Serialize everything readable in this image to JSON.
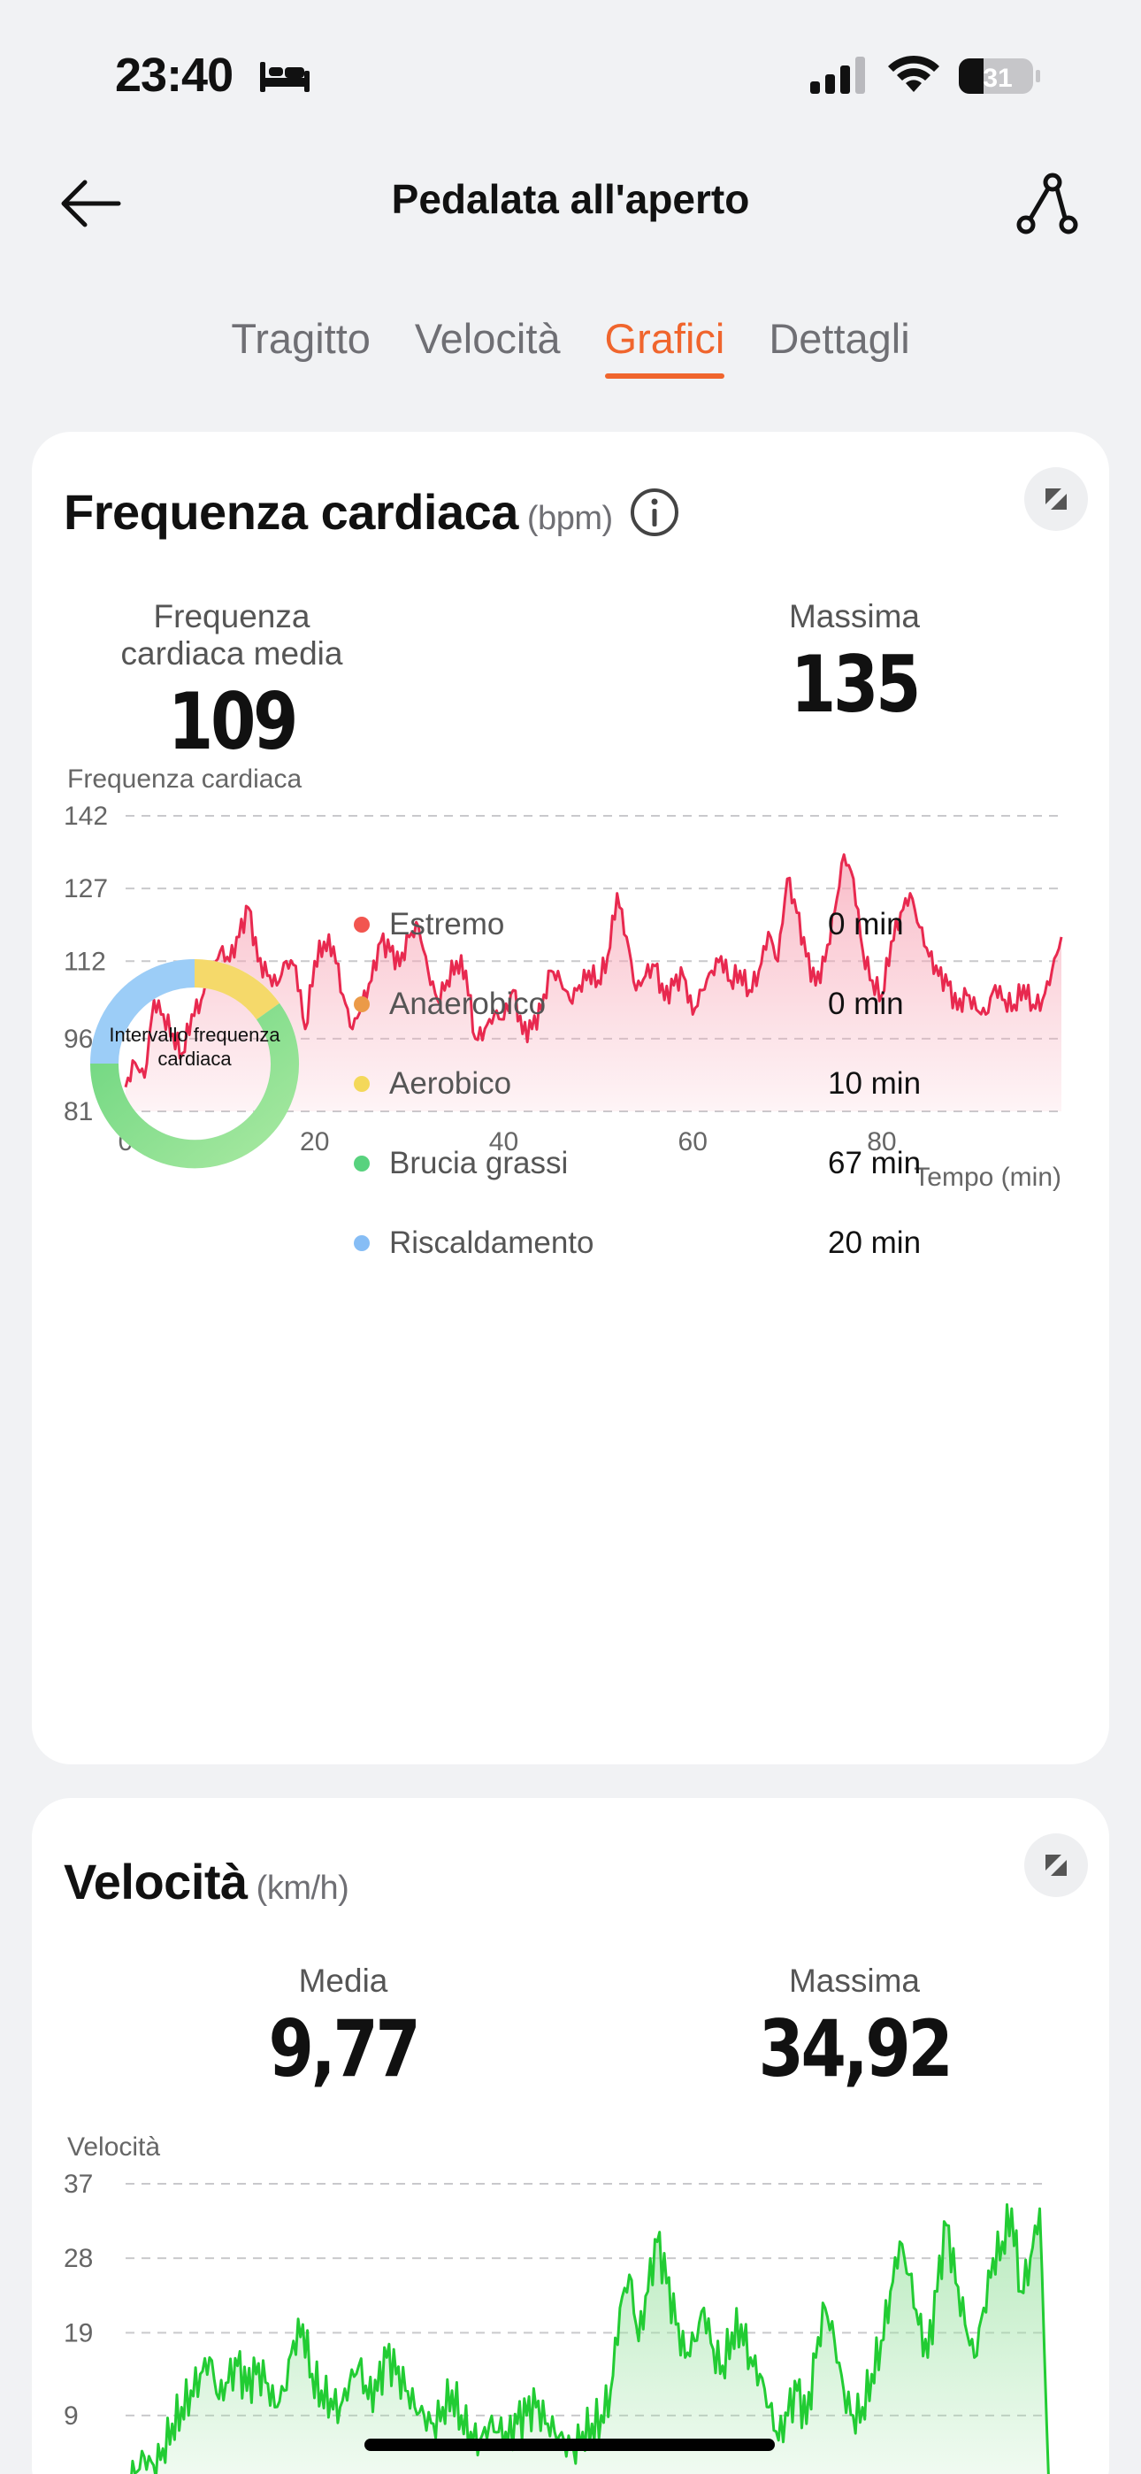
{
  "status_bar": {
    "time": "23:40",
    "battery": "31"
  },
  "header": {
    "title": "Pedalata all'aperto"
  },
  "tabs": [
    {
      "label": "Tragitto",
      "active": false
    },
    {
      "label": "Velocità",
      "active": false
    },
    {
      "label": "Grafici",
      "active": true
    },
    {
      "label": "Dettagli",
      "active": false
    }
  ],
  "heart_rate": {
    "title": "Frequenza cardiaca",
    "unit": "(bpm)",
    "avg_label": "Frequenza cardiaca media",
    "avg_value": "109",
    "max_label": "Massima",
    "max_value": "135",
    "chart_caption": "Frequenza cardiaca",
    "donut_label": "Intervallo frequenza cardiaca",
    "zones": [
      {
        "name": "Estremo",
        "value": "0 min",
        "color": "#f2554f"
      },
      {
        "name": "Anaerobico",
        "value": "0 min",
        "color": "#eb9a48"
      },
      {
        "name": "Aerobico",
        "value": "10 min",
        "color": "#f4d85a"
      },
      {
        "name": "Brucia grassi",
        "value": "67 min",
        "color": "#58d27e"
      },
      {
        "name": "Riscaldamento",
        "value": "20 min",
        "color": "#86bdf5"
      }
    ]
  },
  "speed": {
    "title": "Velocità",
    "unit": "(km/h)",
    "avg_label": "Media",
    "avg_value": "9,77",
    "max_label": "Massima",
    "max_value": "34,92",
    "chart_caption": "Velocità"
  },
  "colors": {
    "accent": "#f0652d",
    "hr_line": "#e8294f",
    "speed_line": "#22cc33"
  },
  "chart_data": [
    {
      "type": "area",
      "title": "Frequenza cardiaca",
      "xlabel": "Tempo (min)",
      "ylabel": "Frequenza cardiaca",
      "yticks": [
        81,
        96,
        112,
        127,
        142
      ],
      "xticks": [
        0,
        20,
        40,
        60,
        80
      ],
      "xlim": [
        0,
        99
      ],
      "ylim": [
        81,
        142
      ],
      "x": [
        0,
        1,
        2,
        3,
        4,
        5,
        6,
        7,
        8,
        9,
        10,
        11,
        12,
        13,
        14,
        15,
        16,
        17,
        18,
        19,
        20,
        21,
        22,
        23,
        24,
        25,
        26,
        27,
        28,
        29,
        30,
        31,
        32,
        33,
        34,
        35,
        36,
        37,
        38,
        39,
        40,
        41,
        42,
        43,
        44,
        45,
        46,
        47,
        48,
        49,
        50,
        51,
        52,
        53,
        54,
        55,
        56,
        57,
        58,
        59,
        60,
        61,
        62,
        63,
        64,
        65,
        66,
        67,
        68,
        69,
        70,
        71,
        72,
        73,
        74,
        75,
        76,
        77,
        78,
        79,
        80,
        81,
        82,
        83,
        84,
        85,
        86,
        87,
        88,
        89,
        90,
        91,
        92,
        93,
        94,
        95,
        96,
        97,
        98,
        99
      ],
      "values": [
        86,
        91,
        88,
        104,
        101,
        97,
        93,
        101,
        104,
        110,
        114,
        112,
        117,
        123,
        112,
        109,
        107,
        112,
        111,
        98,
        112,
        116,
        115,
        105,
        98,
        103,
        108,
        116,
        114,
        111,
        117,
        119,
        110,
        104,
        108,
        112,
        110,
        96,
        98,
        101,
        100,
        106,
        97,
        98,
        102,
        110,
        108,
        104,
        107,
        110,
        108,
        113,
        126,
        117,
        106,
        109,
        111,
        104,
        107,
        109,
        101,
        106,
        110,
        113,
        108,
        110,
        106,
        110,
        118,
        112,
        129,
        122,
        113,
        107,
        112,
        122,
        134,
        129,
        114,
        108,
        105,
        116,
        122,
        126,
        119,
        113,
        109,
        107,
        102,
        105,
        102,
        101,
        107,
        104,
        103,
        107,
        103,
        104,
        110,
        117
      ]
    },
    {
      "type": "area",
      "title": "Velocità",
      "ylabel": "Velocità",
      "yticks": [
        9,
        19,
        28,
        37
      ],
      "ylim": [
        0,
        37
      ],
      "xlim": [
        0,
        99
      ],
      "x": [
        0,
        1,
        2,
        3,
        4,
        5,
        6,
        7,
        8,
        9,
        10,
        11,
        12,
        13,
        14,
        15,
        16,
        17,
        18,
        19,
        20,
        21,
        22,
        23,
        24,
        25,
        26,
        27,
        28,
        29,
        30,
        31,
        32,
        33,
        34,
        35,
        36,
        37,
        38,
        39,
        40,
        41,
        42,
        43,
        44,
        45,
        46,
        47,
        48,
        49,
        50,
        51,
        52,
        53,
        54,
        55,
        56,
        57,
        58,
        59,
        60,
        61,
        62,
        63,
        64,
        65,
        66,
        67,
        68,
        69,
        70,
        71,
        72,
        73,
        74,
        75,
        76,
        77,
        78,
        79,
        80,
        81,
        82,
        83,
        84,
        85,
        86,
        87,
        88,
        89,
        90,
        91,
        92,
        93,
        94,
        95,
        96,
        97,
        98,
        99
      ],
      "values": [
        0,
        2,
        4,
        3,
        5,
        8,
        10,
        12,
        14,
        16,
        11,
        13,
        15,
        12,
        14,
        13,
        10,
        12,
        18,
        20,
        14,
        12,
        11,
        10,
        13,
        15,
        11,
        12,
        16,
        14,
        12,
        10,
        9,
        8,
        10,
        12,
        9,
        7,
        6,
        8,
        7,
        6,
        8,
        9,
        10,
        8,
        7,
        6,
        5,
        7,
        8,
        9,
        12,
        22,
        26,
        18,
        24,
        30,
        25,
        20,
        16,
        18,
        22,
        17,
        15,
        19,
        20,
        16,
        14,
        10,
        6,
        9,
        12,
        8,
        16,
        22,
        18,
        12,
        9,
        10,
        14,
        18,
        24,
        30,
        26,
        20,
        16,
        24,
        32,
        25,
        20,
        16,
        22,
        28,
        30,
        34,
        24,
        28,
        34,
        0
      ]
    }
  ]
}
